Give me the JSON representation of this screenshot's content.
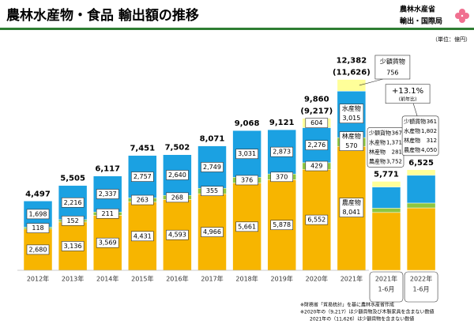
{
  "header": {
    "org_line1": "農林水産省",
    "org_line2": "輸出・国際局"
  },
  "chart_data": {
    "type": "stacked_bar",
    "title": "農林水産物・食品 輸出額の推移",
    "unit": "（単位：億円）",
    "categories": [
      "2012年",
      "2013年",
      "2014年",
      "2015年",
      "2016年",
      "2017年",
      "2018年",
      "2019年",
      "2020年",
      "2021年",
      "2021年",
      "2022年"
    ],
    "category_periods": [
      null,
      null,
      null,
      null,
      null,
      null,
      null,
      null,
      null,
      null,
      "1-6月",
      "1-6月"
    ],
    "series": [
      {
        "name": "農産物",
        "color": "#f7b500",
        "values": [
          2680,
          3136,
          3569,
          4431,
          4593,
          4966,
          5661,
          5878,
          6552,
          8041,
          3752,
          4050
        ],
        "value_labels": [
          "2,680",
          "3,136",
          "3,569",
          "4,431",
          "4,593",
          "4,966",
          "5,661",
          "5,878",
          "6,552",
          "8,041",
          "3,752",
          "4,050"
        ]
      },
      {
        "name": "林産物",
        "color": "#8dc63f",
        "values": [
          118,
          152,
          211,
          263,
          268,
          355,
          376,
          370,
          429,
          570,
          281,
          312
        ],
        "value_labels": [
          "118",
          "152",
          "211",
          "263",
          "268",
          "355",
          "376",
          "370",
          "429",
          "570",
          "281",
          "312"
        ]
      },
      {
        "name": "水産物",
        "color": "#1ba1e2",
        "values": [
          1698,
          2216,
          2337,
          2757,
          2640,
          2749,
          3031,
          2873,
          2276,
          3015,
          1371,
          1802
        ],
        "value_labels": [
          "1,698",
          "2,216",
          "2,337",
          "2,757",
          "2,640",
          "2,749",
          "3,031",
          "2,873",
          "2,276",
          "3,015",
          "1,371",
          "1,802"
        ]
      },
      {
        "name": "少額貨物",
        "color": "#ffff99",
        "values": [
          null,
          null,
          null,
          null,
          null,
          null,
          null,
          null,
          604,
          756,
          367,
          361
        ],
        "value_labels": [
          null,
          null,
          null,
          null,
          null,
          null,
          null,
          null,
          "604",
          "756",
          "367",
          "361"
        ]
      }
    ],
    "totals": {
      "values": [
        4497,
        5505,
        6117,
        7451,
        7502,
        8071,
        9068,
        9121,
        9860,
        12382,
        5771,
        6525
      ],
      "value_labels": [
        "4,497",
        "5,505",
        "6,117",
        "7,451",
        "7,502",
        "8,071",
        "9,068",
        "9,121",
        "9,860",
        "12,382",
        "5,771",
        "6,525"
      ]
    },
    "totals_excluding": {
      "values": [
        null,
        null,
        null,
        null,
        null,
        null,
        null,
        null,
        9217,
        11626,
        null,
        null
      ],
      "value_labels": [
        null,
        null,
        null,
        null,
        null,
        null,
        null,
        null,
        "(9,217)",
        "(11,626)",
        null,
        null
      ]
    },
    "annotations": {
      "growth": "+13.1%",
      "growth_note": "(前年比)"
    },
    "notes": [
      "※財務省「貿易統計」を基に農林水産省作成",
      "※2020年の（9,217）は少額貨物及び木製家具を含まない数値",
      "2021年の（11,626）は少額貨物を含まない数値"
    ]
  }
}
